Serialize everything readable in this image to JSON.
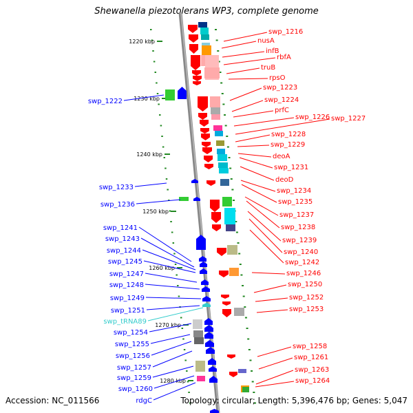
{
  "title": "Shewanella piezotolerans WP3, complete genome",
  "accession": "Accession: NC_011566",
  "topology": "Topology: circular; Length: 5,396,476 bp; Genes: 5,047",
  "colors": {
    "forward": "#ff0000",
    "reverse": "#0000ff",
    "trna": "#33cccc",
    "scale": "#228822",
    "backbone": "#888888"
  },
  "scale_ticks": [
    "1220 kbp",
    "1230 kbp",
    "1240 kbp",
    "1250 kbp",
    "1260 kbp",
    "1270 kbp",
    "1280 kbp"
  ],
  "right_labels": [
    "swp_1216",
    "nusA",
    "infB",
    "rbfA",
    "truB",
    "rpsO",
    "swp_1223",
    "swp_1224",
    "prfC",
    "swp_1226",
    "swp_1227",
    "swp_1228",
    "swp_1229",
    "deoA",
    "swp_1231",
    "deoD",
    "swp_1234",
    "swp_1235",
    "swp_1237",
    "swp_1238",
    "swp_1239",
    "swp_1240",
    "swp_1242",
    "swp_1246",
    "swp_1250",
    "swp_1252",
    "swp_1253",
    "swp_1258",
    "swp_1261",
    "swp_1263",
    "swp_1264"
  ],
  "left_labels": [
    "swp_1222",
    "swp_1233",
    "swp_1236",
    "swp_1241",
    "swp_1243",
    "swp_1244",
    "swp_1245",
    "swp_1247",
    "swp_1248",
    "swp_1249",
    "swp_1251",
    "swp_tRNA89",
    "swp_1254",
    "swp_1255",
    "swp_1256",
    "swp_1257",
    "swp_1259",
    "swp_1260",
    "rdgC"
  ]
}
